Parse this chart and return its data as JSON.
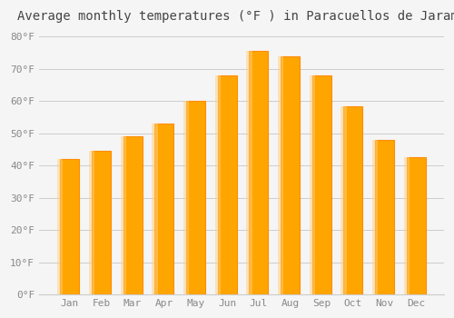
{
  "title": "Average monthly temperatures (°F ) in Paracuellos de Jarama",
  "months": [
    "Jan",
    "Feb",
    "Mar",
    "Apr",
    "May",
    "Jun",
    "Jul",
    "Aug",
    "Sep",
    "Oct",
    "Nov",
    "Dec"
  ],
  "values": [
    42,
    44.5,
    49,
    53,
    60,
    68,
    75.5,
    74,
    68,
    58.5,
    48,
    42.5
  ],
  "bar_color_face": "#FFA500",
  "bar_color_edge": "#FF8C00",
  "background_color": "#f5f5f5",
  "ylim": [
    0,
    82
  ],
  "yticks": [
    0,
    10,
    20,
    30,
    40,
    50,
    60,
    70,
    80
  ],
  "ytick_labels": [
    "0°F",
    "10°F",
    "20°F",
    "30°F",
    "40°F",
    "50°F",
    "60°F",
    "70°F",
    "80°F"
  ],
  "grid_color": "#cccccc",
  "title_fontsize": 10,
  "tick_fontsize": 8,
  "font_family": "monospace"
}
